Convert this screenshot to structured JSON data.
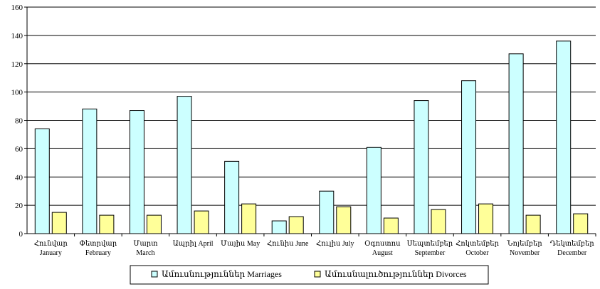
{
  "chart_data": {
    "type": "bar",
    "title": "",
    "xlabel": "",
    "ylabel": "",
    "ylim": [
      0,
      160
    ],
    "yticks": [
      0,
      20,
      40,
      60,
      80,
      100,
      120,
      140,
      160
    ],
    "grid": "horizontal",
    "legend_position": "bottom",
    "categories": [
      [
        "Հունվար",
        "January"
      ],
      [
        "Փետրվար",
        "February"
      ],
      [
        "Մարտ",
        "March"
      ],
      [
        "Ապրիլ April"
      ],
      [
        "Մայիս May"
      ],
      [
        "Հունիս June"
      ],
      [
        "Հուլիս July"
      ],
      [
        "Օգոստոս",
        "August"
      ],
      [
        "Սեպտեմբեր",
        "September"
      ],
      [
        "Հոկտեմբեր",
        "October"
      ],
      [
        "Նոյեմբեր",
        "November"
      ],
      [
        "Դեկտեմբեր",
        "December"
      ]
    ],
    "series": [
      {
        "name": "Ամուսնություններ Marriages",
        "color": "#ccffff",
        "values": [
          74,
          88,
          87,
          97,
          51,
          9,
          30,
          61,
          94,
          108,
          127,
          136
        ]
      },
      {
        "name": "Ամուսնալուծություններ Divorces",
        "color": "#ffff99",
        "values": [
          15,
          13,
          13,
          16,
          21,
          12,
          19,
          11,
          17,
          21,
          13,
          14
        ]
      }
    ]
  }
}
